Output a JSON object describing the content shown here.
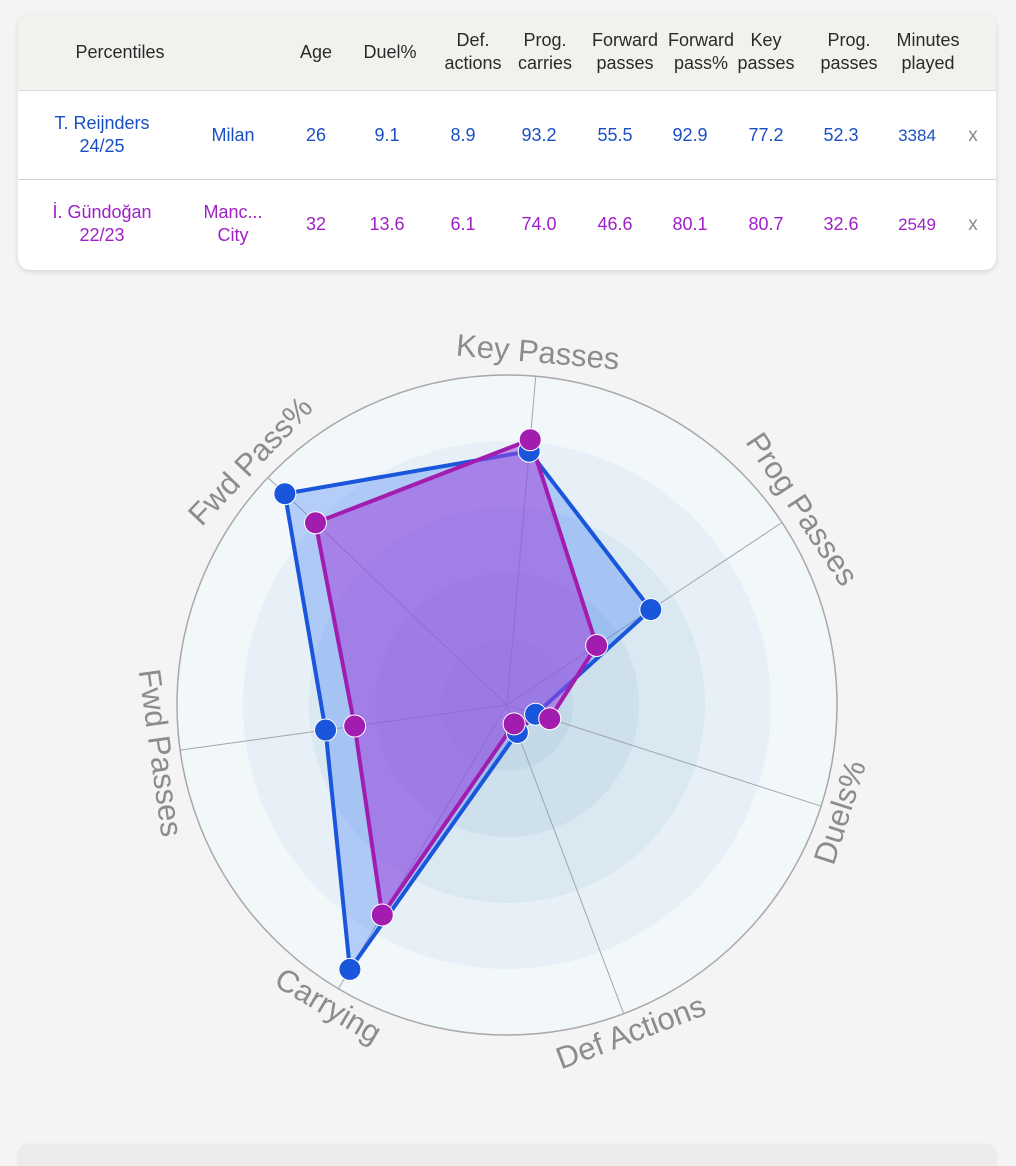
{
  "table": {
    "headers": [
      {
        "key": "percentiles",
        "label": "Percentiles"
      },
      {
        "key": "age",
        "label": "Age"
      },
      {
        "key": "duel",
        "label": "Duel%"
      },
      {
        "key": "def",
        "label": "Def.\nactions"
      },
      {
        "key": "carries",
        "label": "Prog.\ncarries"
      },
      {
        "key": "fwd_passes",
        "label": "Forward\npasses"
      },
      {
        "key": "fwd_pct",
        "label": "Forward\npass%"
      },
      {
        "key": "key_passes",
        "label": "Key\npasses"
      },
      {
        "key": "prog_passes",
        "label": "Prog.\npasses"
      },
      {
        "key": "minutes",
        "label": "Minutes\nplayed"
      }
    ],
    "rows": [
      {
        "player": "T. Reijnders\n24/25",
        "club": "Milan",
        "age": "26",
        "duel": "9.1",
        "def": "8.9",
        "carries": "93.2",
        "fwd_passes": "55.5",
        "fwd_pct": "92.9",
        "key_passes": "77.2",
        "prog_passes": "52.3",
        "minutes": "3384",
        "remove": "x"
      },
      {
        "player": "İ. Gündoğan\n22/23",
        "club": "Manc...\nCity",
        "age": "32",
        "duel": "13.6",
        "def": "6.1",
        "carries": "74.0",
        "fwd_passes": "46.6",
        "fwd_pct": "80.1",
        "key_passes": "80.7",
        "prog_passes": "32.6",
        "minutes": "2549",
        "remove": "x"
      }
    ]
  },
  "chart_data": {
    "type": "radar",
    "axes": [
      "Key Passes",
      "Prog Passes",
      "Duels%",
      "Def Actions",
      "Carrying",
      "Fwd Passes",
      "Fwd Pass%"
    ],
    "range": [
      0,
      100
    ],
    "series": [
      {
        "color": "#1a56db",
        "fill": "rgba(70,130,245,0.35)",
        "values": [
          77.2,
          52.3,
          9.1,
          8.9,
          93.2,
          55.5,
          92.9
        ]
      },
      {
        "color": "#a21caf",
        "fill": "rgba(160,70,220,0.55)",
        "values": [
          80.7,
          32.6,
          13.6,
          6.1,
          74.0,
          46.6,
          80.1
        ]
      }
    ]
  }
}
